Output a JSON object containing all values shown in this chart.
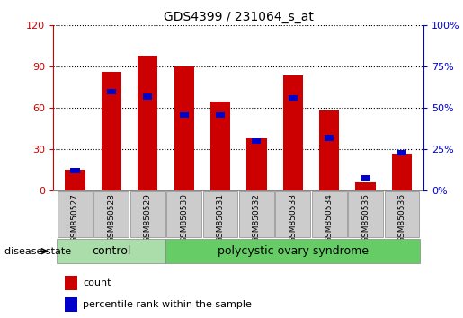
{
  "title": "GDS4399 / 231064_s_at",
  "samples": [
    "GSM850527",
    "GSM850528",
    "GSM850529",
    "GSM850530",
    "GSM850531",
    "GSM850532",
    "GSM850533",
    "GSM850534",
    "GSM850535",
    "GSM850536"
  ],
  "count_values": [
    15,
    86,
    98,
    90,
    65,
    38,
    84,
    58,
    6,
    27
  ],
  "percentile_values": [
    12,
    60,
    57,
    46,
    46,
    30,
    56,
    32,
    8,
    23
  ],
  "ylim_left": [
    0,
    120
  ],
  "ylim_right": [
    0,
    100
  ],
  "yticks_left": [
    0,
    30,
    60,
    90,
    120
  ],
  "yticks_right": [
    0,
    25,
    50,
    75,
    100
  ],
  "left_tick_labels": [
    "0",
    "30",
    "60",
    "90",
    "120"
  ],
  "right_tick_labels": [
    "0%",
    "25%",
    "50%",
    "75%",
    "100%"
  ],
  "bar_color_count": "#cc0000",
  "bar_color_percentile": "#0000cc",
  "control_label": "control",
  "disease_label": "polycystic ovary syndrome",
  "disease_state_label": "disease state",
  "legend_count": "count",
  "legend_percentile": "percentile rank within the sample",
  "control_color": "#aaddaa",
  "disease_color": "#66cc66",
  "tick_label_color_left": "#cc0000",
  "tick_label_color_right": "#0000cc",
  "bar_width": 0.55,
  "pct_bar_width": 0.25,
  "pct_bar_thickness": 4
}
